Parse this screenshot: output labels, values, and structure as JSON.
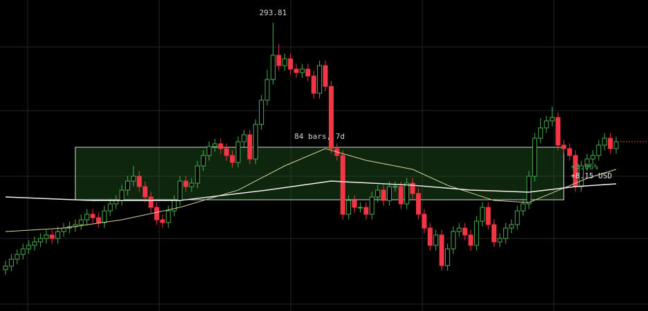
{
  "chart_data": {
    "type": "candlestick",
    "open": [
      255.5,
      256.04,
      257.11,
      257.86,
      258.72,
      259.26,
      259.8,
      260.33,
      260.87,
      260.33,
      261.4,
      261.94,
      262.16,
      262.48,
      263.23,
      264.09,
      263.55,
      262.8,
      264.62,
      265.7,
      266.23,
      267.84,
      269.24,
      269.99,
      268.38,
      266.77,
      265.16,
      263.23,
      262.8,
      264.62,
      266.23,
      269.24,
      268.38,
      268.92,
      271.6,
      273.21,
      274.6,
      275.03,
      274.28,
      273.21,
      272.14,
      275.35,
      276.43,
      272.67,
      278.04,
      281.79,
      285.01,
      288.77,
      287.16,
      288.23,
      286.62,
      286.08,
      286.62,
      285.55,
      282.87,
      287.16,
      283.94,
      274.28,
      273.21,
      264.09,
      266.23,
      265.16,
      265.16,
      264.09,
      266.77,
      267.84,
      266.23,
      268.38,
      268.38,
      265.7,
      268.92,
      267.31,
      264.09,
      261.94,
      259.26,
      260.87,
      256.12,
      258.72,
      261.4,
      261.94,
      260.87,
      259.26,
      263.01,
      265.16,
      262.48,
      259.8,
      260.33,
      261.94,
      262.48,
      264.62,
      265.7,
      269.99,
      275.89,
      277.5,
      278.58,
      279.11,
      274.82,
      274.28,
      273.21,
      268.38,
      271.6,
      272.67,
      273.21,
      274.82,
      275.89,
      274.28
    ],
    "high": [
      256.84,
      257.91,
      258.66,
      259.52,
      260.06,
      260.6,
      261.13,
      261.67,
      261.67,
      262.2,
      262.74,
      262.96,
      263.28,
      264.03,
      264.89,
      264.89,
      264.35,
      265.42,
      266.5,
      267.03,
      268.64,
      270.04,
      271.6,
      270.79,
      269.18,
      267.57,
      265.96,
      264.03,
      265.42,
      267.03,
      270.04,
      270.04,
      269.72,
      272.4,
      274.01,
      275.4,
      275.83,
      275.83,
      275.08,
      274.01,
      276.15,
      277.23,
      277.23,
      278.84,
      282.59,
      286.5,
      293.81,
      290.5,
      289.03,
      289.03,
      287.42,
      287.42,
      287.42,
      286.35,
      287.96,
      287.96,
      284.74,
      275.08,
      274.01,
      267.03,
      267.03,
      265.96,
      265.96,
      267.57,
      268.64,
      268.64,
      269.18,
      269.18,
      269.18,
      269.72,
      269.72,
      268.11,
      264.89,
      262.74,
      261.67,
      261.67,
      259.52,
      262.2,
      262.74,
      262.74,
      261.67,
      263.81,
      265.96,
      265.96,
      263.28,
      261.13,
      262.74,
      263.28,
      265.42,
      266.5,
      270.79,
      276.69,
      279.0,
      279.38,
      280.8,
      279.91,
      275.62,
      275.08,
      274.01,
      272.4,
      273.47,
      274.01,
      275.62,
      276.69,
      276.69,
      276.15
    ],
    "low": [
      254.7,
      255.24,
      256.31,
      257.06,
      257.92,
      258.46,
      259.0,
      259.53,
      259.53,
      259.53,
      260.6,
      261.14,
      261.36,
      261.68,
      262.43,
      262.75,
      262.0,
      262.0,
      263.82,
      264.9,
      265.43,
      267.04,
      268.44,
      267.58,
      265.97,
      264.36,
      262.43,
      262.0,
      262.0,
      263.82,
      265.43,
      267.58,
      267.58,
      268.12,
      270.8,
      272.41,
      273.8,
      273.48,
      272.41,
      271.34,
      271.34,
      274.55,
      271.87,
      271.87,
      277.24,
      280.99,
      284.21,
      286.36,
      286.36,
      285.82,
      285.28,
      285.28,
      284.75,
      282.07,
      282.07,
      283.14,
      273.48,
      272.41,
      263.29,
      263.29,
      264.36,
      264.36,
      263.29,
      263.29,
      265.97,
      265.43,
      265.43,
      267.58,
      264.9,
      264.9,
      266.51,
      263.29,
      261.14,
      258.46,
      258.46,
      255.32,
      255.32,
      257.92,
      260.6,
      260.07,
      258.46,
      258.46,
      262.21,
      261.68,
      259.0,
      259.0,
      259.53,
      261.14,
      261.68,
      263.82,
      264.9,
      269.19,
      275.09,
      276.7,
      277.78,
      274.02,
      273.48,
      272.41,
      267.58,
      267.58,
      270.8,
      271.87,
      272.41,
      274.02,
      273.48,
      273.48
    ],
    "close": [
      256.04,
      257.11,
      257.86,
      258.72,
      259.26,
      259.8,
      260.33,
      260.87,
      260.33,
      261.4,
      261.94,
      262.16,
      262.48,
      263.23,
      264.09,
      263.55,
      262.8,
      264.62,
      265.7,
      266.23,
      267.84,
      269.24,
      269.99,
      268.38,
      266.77,
      265.16,
      263.23,
      262.8,
      264.62,
      266.23,
      269.24,
      268.38,
      268.92,
      271.6,
      273.21,
      274.6,
      275.03,
      274.28,
      273.21,
      272.14,
      275.35,
      276.43,
      272.67,
      278.04,
      281.79,
      285.01,
      288.77,
      287.16,
      288.23,
      286.62,
      286.08,
      286.62,
      285.55,
      282.87,
      287.16,
      283.94,
      274.28,
      273.21,
      264.09,
      266.23,
      265.16,
      265.16,
      264.09,
      266.77,
      267.84,
      266.23,
      268.38,
      268.38,
      265.7,
      268.92,
      267.31,
      264.09,
      261.94,
      259.26,
      260.87,
      256.12,
      258.72,
      261.4,
      261.94,
      260.87,
      259.26,
      263.01,
      265.16,
      262.48,
      259.8,
      260.33,
      261.94,
      262.48,
      264.62,
      265.7,
      269.99,
      275.89,
      277.5,
      278.58,
      279.11,
      274.82,
      274.28,
      273.21,
      268.38,
      271.6,
      272.67,
      273.21,
      274.82,
      275.89,
      274.28,
      275.35
    ],
    "up_color": "#4caf50",
    "down_color": "#f23645",
    "ylim": [
      249.07,
      297.35
    ],
    "high_label": "293.81",
    "high_index": 46,
    "lines": [
      {
        "color": "#d8d89a",
        "x": [
          0,
          10,
          20,
          30,
          40,
          48,
          55,
          62,
          70,
          76,
          84,
          90,
          96,
          100,
          105
        ],
        "values": [
          261.4,
          261.94,
          263.23,
          265.16,
          267.84,
          271.6,
          274.28,
          272.46,
          271.06,
          268.59,
          266.23,
          265.91,
          268.16,
          269.67,
          271.06
        ]
      },
      {
        "color": "#f2f2f2",
        "x": [
          0,
          15,
          30,
          45,
          56,
          70,
          80,
          90,
          98,
          105
        ],
        "values": [
          266.77,
          266.23,
          266.23,
          267.84,
          269.24,
          268.59,
          267.84,
          267.52,
          268.38,
          268.81
        ]
      }
    ],
    "measure": {
      "from": 12,
      "to": 96,
      "low": 266.34,
      "high": 274.49,
      "bars_label": "84 bars, 7d",
      "percent_label": "+3.06%",
      "change_label": "+8.15 USD"
    }
  }
}
